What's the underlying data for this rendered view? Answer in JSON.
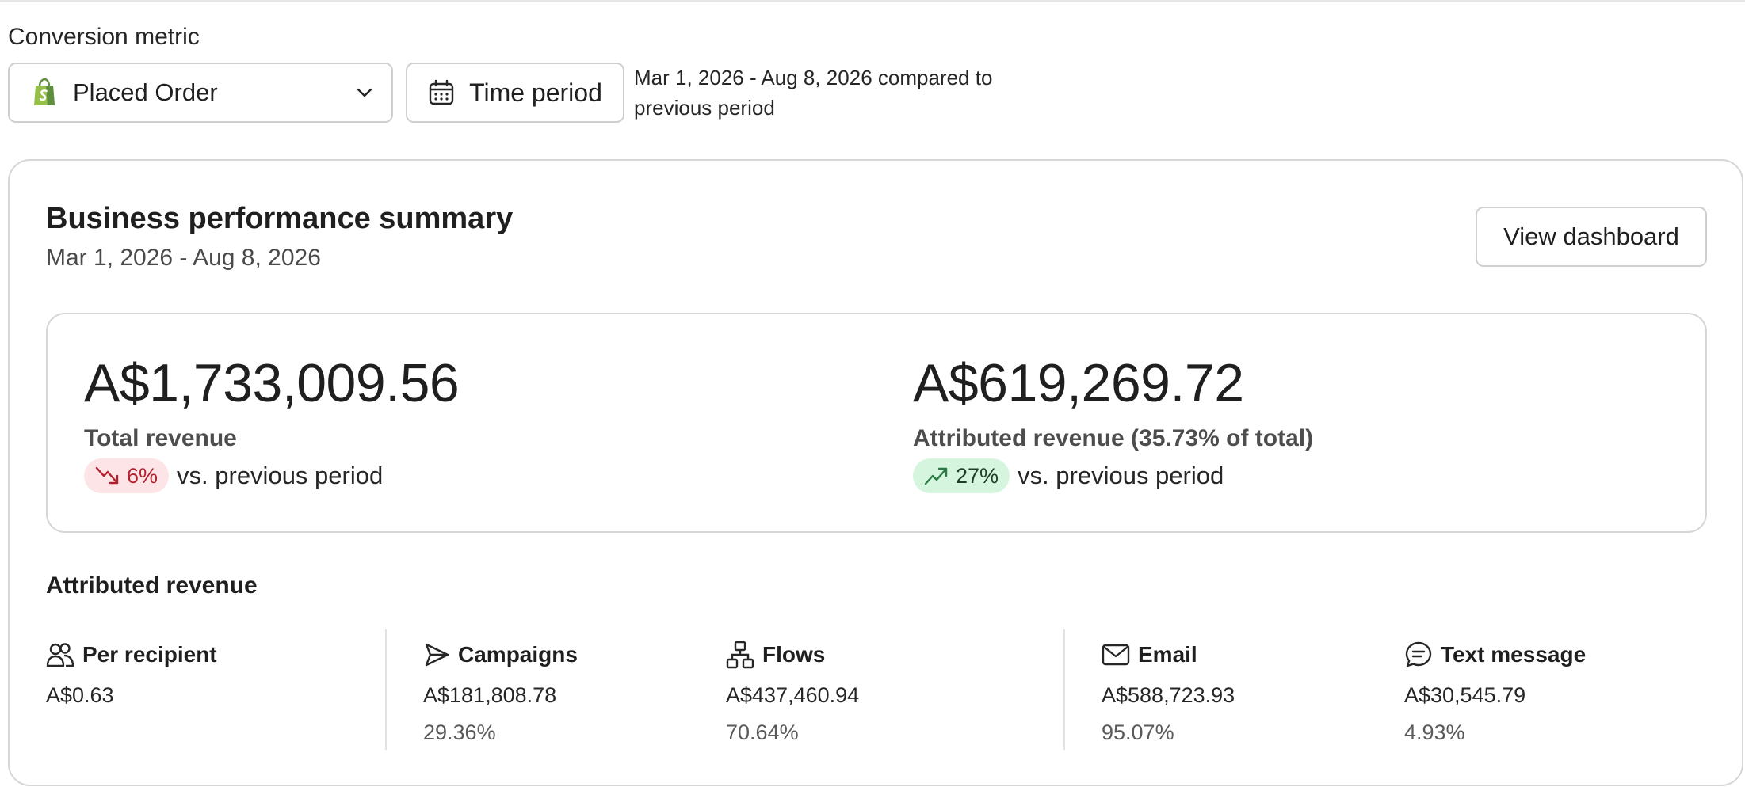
{
  "filters": {
    "conversion_label": "Conversion metric",
    "metric_select": {
      "value": "Placed Order",
      "icon": "shopify-bag-icon"
    },
    "time_period_button": "Time period",
    "period_description": "Mar 1, 2026 - Aug 8, 2026 compared to previous period"
  },
  "summary": {
    "title": "Business performance summary",
    "date_range": "Mar 1, 2026 - Aug 8, 2026",
    "view_button": "View dashboard",
    "total": {
      "value": "A$1,733,009.56",
      "label": "Total revenue",
      "change": "6%",
      "direction": "down",
      "vs": "vs. previous period"
    },
    "attributed": {
      "value": "A$619,269.72",
      "label": "Attributed revenue (35.73% of total)",
      "change": "27%",
      "direction": "up",
      "vs": "vs. previous period"
    }
  },
  "attributed_revenue": {
    "title": "Attributed revenue",
    "columns": [
      {
        "label": "Per recipient",
        "icon": "people-icon",
        "amount": "A$0.63",
        "percent": ""
      },
      {
        "label": "Campaigns",
        "icon": "send-icon",
        "amount": "A$181,808.78",
        "percent": "29.36%"
      },
      {
        "label": "Flows",
        "icon": "flow-icon",
        "amount": "A$437,460.94",
        "percent": "70.64%"
      },
      {
        "label": "Email",
        "icon": "mail-icon",
        "amount": "A$588,723.93",
        "percent": "95.07%"
      },
      {
        "label": "Text message",
        "icon": "chat-icon",
        "amount": "A$30,545.79",
        "percent": "4.93%"
      }
    ]
  },
  "colors": {
    "shopify_green": "#95bf47",
    "down_bg": "#fde4e6",
    "down_fg": "#b3202e",
    "up_bg": "#d6f5de",
    "up_fg": "#2a7a45"
  }
}
